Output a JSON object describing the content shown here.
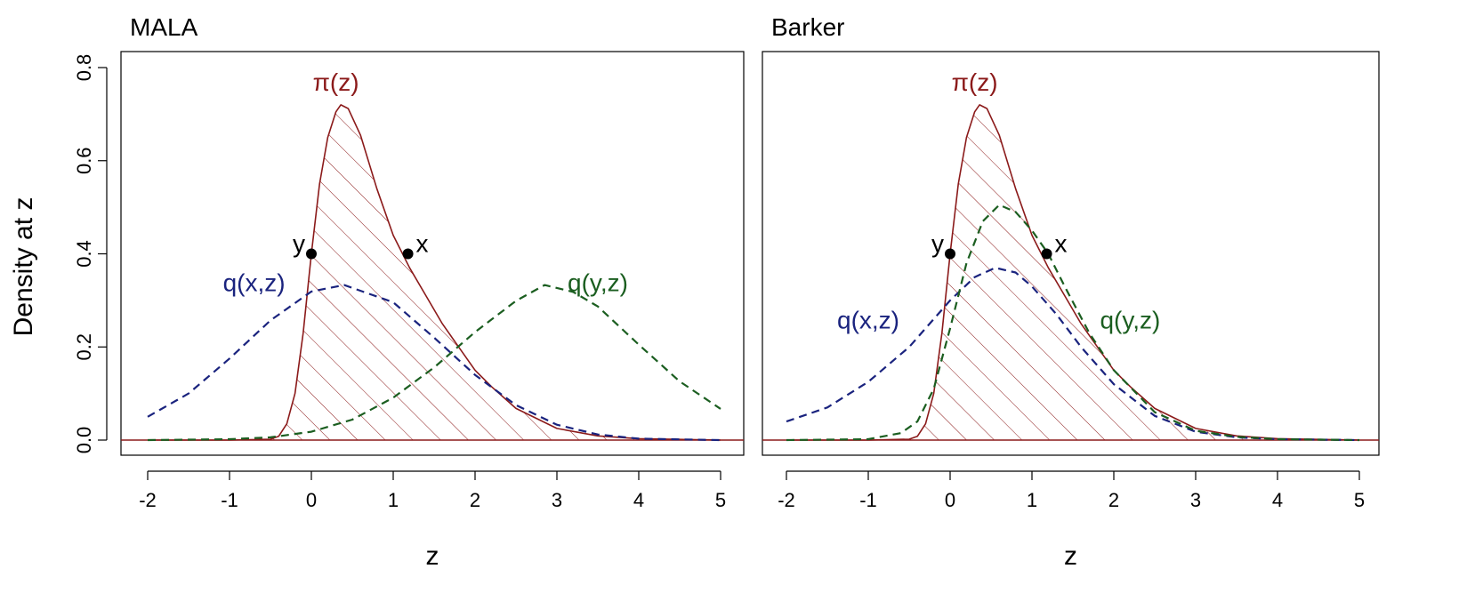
{
  "ylabel": "Density at z",
  "xlabel": "z",
  "colors": {
    "target": "#8b1a1a",
    "qx": "#1a237e",
    "qy": "#1b5e20",
    "point": "#000000",
    "axis": "#000000"
  },
  "chart_data": [
    {
      "type": "line",
      "title": "MALA",
      "xlabel": "z",
      "ylabel": "Density at z",
      "xlim": [
        -2,
        5
      ],
      "ylim": [
        0,
        0.8
      ],
      "xticks": [
        "-2",
        "-1",
        "0",
        "1",
        "2",
        "3",
        "4",
        "5"
      ],
      "yticks": [
        "0.0",
        "0.2",
        "0.4",
        "0.6",
        "0.8"
      ],
      "grid": false,
      "series": [
        {
          "name": "π(z)",
          "style": "solid",
          "color": "#8b1a1a",
          "hatched": true,
          "x": [
            -2,
            -1,
            -0.5,
            -0.4,
            -0.3,
            -0.2,
            -0.1,
            0,
            0.1,
            0.2,
            0.3,
            0.36,
            0.45,
            0.6,
            0.8,
            1,
            1.2,
            1.4,
            1.6,
            1.8,
            2,
            2.2,
            2.5,
            3,
            3.5,
            4,
            5
          ],
          "y": [
            0,
            0,
            0.002,
            0.008,
            0.035,
            0.1,
            0.23,
            0.4,
            0.55,
            0.65,
            0.705,
            0.72,
            0.712,
            0.655,
            0.54,
            0.44,
            0.37,
            0.31,
            0.25,
            0.2,
            0.15,
            0.115,
            0.068,
            0.025,
            0.009,
            0.003,
            0
          ]
        },
        {
          "name": "q(x,z)",
          "style": "dashed",
          "color": "#1a237e",
          "x": [
            -2,
            -1.5,
            -1,
            -0.5,
            0,
            0.4,
            1,
            1.5,
            2,
            2.5,
            3,
            3.5,
            4,
            5
          ],
          "y": [
            0.05,
            0.1,
            0.175,
            0.257,
            0.319,
            0.333,
            0.296,
            0.22,
            0.14,
            0.075,
            0.033,
            0.012,
            0.003,
            0
          ]
        },
        {
          "name": "q(y,z)",
          "style": "dashed",
          "color": "#1b5e20",
          "x": [
            -2,
            -1,
            -0.5,
            0,
            0.5,
            1,
            1.5,
            2,
            2.5,
            2.85,
            3.2,
            3.5,
            4,
            4.5,
            5
          ],
          "y": [
            0,
            0.002,
            0.006,
            0.018,
            0.044,
            0.091,
            0.156,
            0.232,
            0.299,
            0.333,
            0.318,
            0.287,
            0.205,
            0.126,
            0.067
          ]
        }
      ],
      "points": [
        {
          "label": "y",
          "x": 0,
          "y": 0.4
        },
        {
          "label": "x",
          "x": 1.18,
          "y": 0.4
        }
      ],
      "annotations": [
        {
          "text": "π(z)",
          "x": 0.3,
          "y": 0.75
        },
        {
          "text": "q(x,z)",
          "x": -0.7,
          "y": 0.32
        },
        {
          "text": "q(y,z)",
          "x": 3.5,
          "y": 0.32
        }
      ]
    },
    {
      "type": "line",
      "title": "Barker",
      "xlabel": "z",
      "ylabel": "Density at z",
      "xlim": [
        -2,
        5
      ],
      "ylim": [
        0,
        0.8
      ],
      "xticks": [
        "-2",
        "-1",
        "0",
        "1",
        "2",
        "3",
        "4",
        "5"
      ],
      "yticks": [
        "0.0",
        "0.2",
        "0.4",
        "0.6",
        "0.8"
      ],
      "grid": false,
      "series": [
        {
          "name": "π(z)",
          "style": "solid",
          "color": "#8b1a1a",
          "hatched": true,
          "x": [
            -2,
            -1,
            -0.5,
            -0.4,
            -0.3,
            -0.2,
            -0.1,
            0,
            0.1,
            0.2,
            0.3,
            0.36,
            0.45,
            0.6,
            0.8,
            1,
            1.2,
            1.4,
            1.6,
            1.8,
            2,
            2.2,
            2.5,
            3,
            3.5,
            4,
            5
          ],
          "y": [
            0,
            0,
            0.002,
            0.008,
            0.035,
            0.1,
            0.23,
            0.4,
            0.55,
            0.65,
            0.705,
            0.72,
            0.712,
            0.655,
            0.54,
            0.44,
            0.37,
            0.31,
            0.25,
            0.2,
            0.15,
            0.115,
            0.068,
            0.025,
            0.009,
            0.003,
            0
          ]
        },
        {
          "name": "q(x,z)",
          "style": "dashed",
          "color": "#1a237e",
          "x": [
            -2,
            -1.5,
            -1,
            -0.5,
            0,
            0.3,
            0.55,
            0.8,
            1,
            1.3,
            1.6,
            2,
            2.5,
            3,
            3.5,
            4,
            5
          ],
          "y": [
            0.04,
            0.07,
            0.125,
            0.2,
            0.3,
            0.35,
            0.37,
            0.36,
            0.33,
            0.27,
            0.2,
            0.12,
            0.052,
            0.018,
            0.006,
            0.002,
            0
          ]
        },
        {
          "name": "q(y,z)",
          "style": "dashed",
          "color": "#1b5e20",
          "x": [
            -2,
            -1,
            -0.6,
            -0.4,
            -0.2,
            0,
            0.2,
            0.4,
            0.6,
            0.8,
            1,
            1.2,
            1.4,
            1.7,
            2,
            2.5,
            3,
            3.5,
            4,
            5
          ],
          "y": [
            0,
            0.002,
            0.015,
            0.04,
            0.11,
            0.24,
            0.38,
            0.47,
            0.505,
            0.49,
            0.45,
            0.4,
            0.33,
            0.23,
            0.15,
            0.06,
            0.02,
            0.007,
            0.002,
            0
          ]
        }
      ],
      "points": [
        {
          "label": "y",
          "x": 0,
          "y": 0.4
        },
        {
          "label": "x",
          "x": 1.18,
          "y": 0.4
        }
      ],
      "annotations": [
        {
          "text": "π(z)",
          "x": 0.3,
          "y": 0.75
        },
        {
          "text": "q(x,z)",
          "x": -1.0,
          "y": 0.24
        },
        {
          "text": "q(y,z)",
          "x": 2.2,
          "y": 0.24
        }
      ]
    }
  ]
}
